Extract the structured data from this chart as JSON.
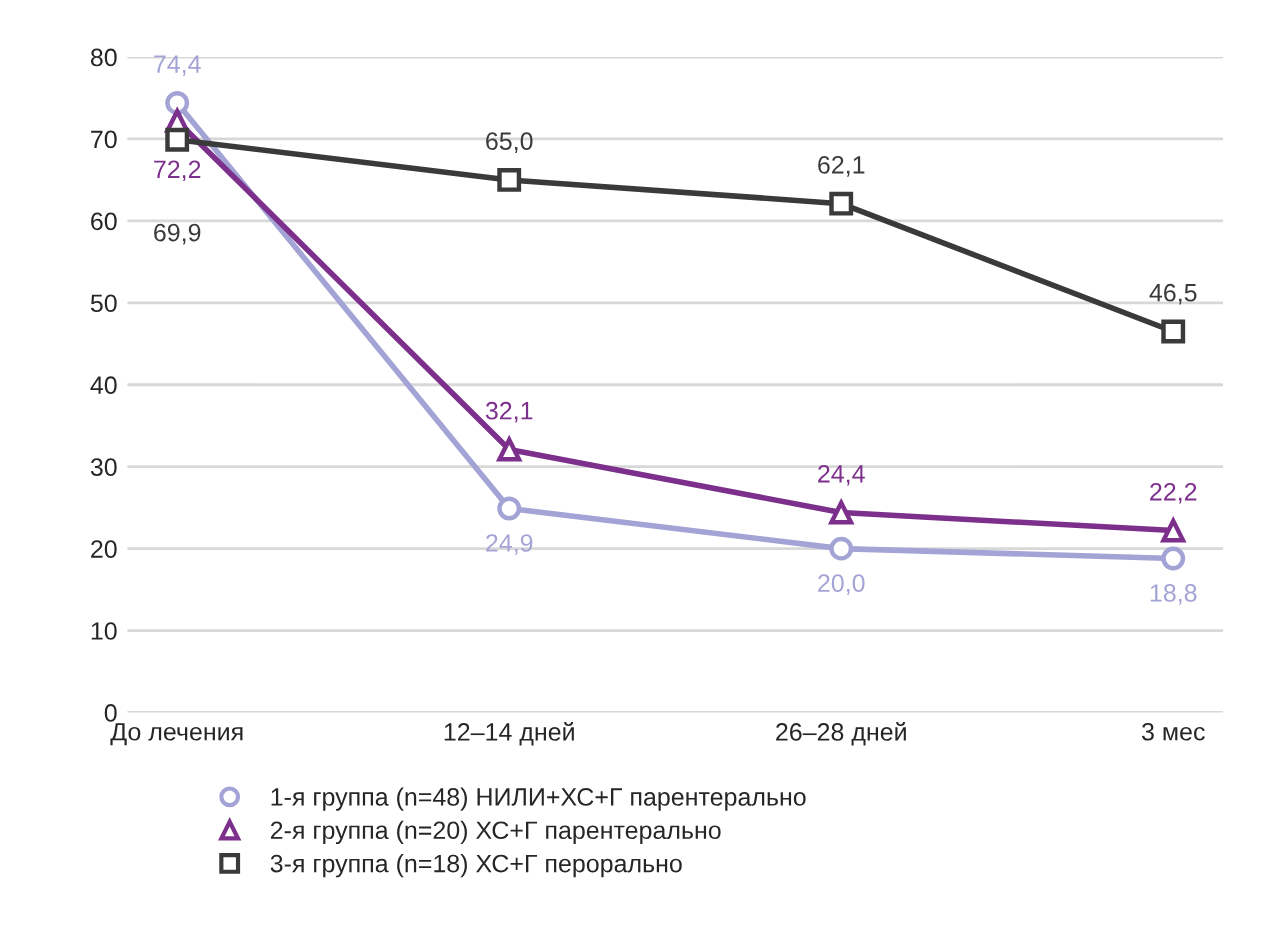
{
  "chart_data": {
    "type": "line",
    "categories": [
      "До лечения",
      "12–14 дней",
      "26–28 дней",
      "3 мес"
    ],
    "series": [
      {
        "name": "1-я группа (n=48) НИЛИ+ХС+Г парентерально",
        "color": "#a3a3d6",
        "marker": "circle",
        "values": [
          74.4,
          24.9,
          20.0,
          18.8
        ],
        "value_labels": [
          "74,4",
          "24,9",
          "20,0",
          "18,8"
        ]
      },
      {
        "name": "2-я группа (n=20) ХС+Г парентерально",
        "color": "#7d2f8c",
        "marker": "triangle",
        "values": [
          72.2,
          32.1,
          24.4,
          22.2
        ],
        "value_labels": [
          "72,2",
          "32,1",
          "24,4",
          "22,2"
        ]
      },
      {
        "name": "3-я группа (n=18) ХС+Г перорально",
        "color": "#3a3a3a",
        "marker": "square",
        "values": [
          69.9,
          65.0,
          62.1,
          46.5
        ],
        "value_labels": [
          "69,9",
          "65,0",
          "62,1",
          "46,5"
        ]
      }
    ],
    "ylim": [
      0,
      80
    ],
    "yticks": [
      0,
      10,
      20,
      30,
      40,
      50,
      60,
      70,
      80
    ],
    "grid": "y",
    "legend": "bottom left"
  }
}
